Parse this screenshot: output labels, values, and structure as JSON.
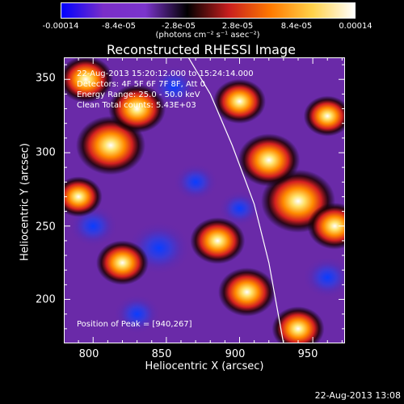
{
  "colorbar": {
    "ticks": [
      "-0.00014",
      "-8.4e-05",
      "-2.8e-05",
      "2.8e-05",
      "8.4e-05",
      "0.00014"
    ],
    "units": "(photons cm⁻² s⁻¹ asec⁻²)",
    "colors": [
      "#0000ff",
      "#7a2ec8",
      "#7b34cc",
      "#000000",
      "#c81e1e",
      "#ff7a00",
      "#ffd24a",
      "#ffffff"
    ]
  },
  "chart_data": {
    "type": "heatmap",
    "title": "Reconstructed RHESSI Image",
    "xlabel": "Heliocentric X (arcsec)",
    "ylabel": "Heliocentric Y (arcsec)",
    "xlim": [
      780,
      972
    ],
    "ylim": [
      170,
      365
    ],
    "xticks": [
      800,
      850,
      900,
      950
    ],
    "yticks": [
      200,
      250,
      300,
      350
    ],
    "annotations": [
      "22-Aug-2013 15:20:12.000 to 15:24:14.000",
      "Detectors: 4F 5F 6F 7F 8F, Att 0",
      "Energy Range: 25.0 - 50.0 keV",
      "Clean    Total counts: 5.43E+03",
      "Position of Peak = [940,267]"
    ],
    "peak": [
      940,
      267
    ],
    "bright_sources": [
      {
        "x": 940,
        "y": 267,
        "intensity": 1.0
      },
      {
        "x": 812,
        "y": 305,
        "intensity": 0.9
      },
      {
        "x": 920,
        "y": 295,
        "intensity": 0.75
      },
      {
        "x": 965,
        "y": 250,
        "intensity": 0.6
      },
      {
        "x": 830,
        "y": 330,
        "intensity": 0.65
      },
      {
        "x": 900,
        "y": 335,
        "intensity": 0.55
      },
      {
        "x": 795,
        "y": 350,
        "intensity": 0.6
      },
      {
        "x": 885,
        "y": 240,
        "intensity": 0.6
      },
      {
        "x": 905,
        "y": 205,
        "intensity": 0.65
      },
      {
        "x": 940,
        "y": 180,
        "intensity": 0.55
      },
      {
        "x": 820,
        "y": 225,
        "intensity": 0.55
      },
      {
        "x": 790,
        "y": 270,
        "intensity": 0.45
      },
      {
        "x": 960,
        "y": 325,
        "intensity": 0.45
      }
    ],
    "dark_sources": [
      {
        "x": 845,
        "y": 235,
        "intensity": -0.8
      },
      {
        "x": 800,
        "y": 250,
        "intensity": -0.5
      },
      {
        "x": 855,
        "y": 345,
        "intensity": -0.5
      },
      {
        "x": 960,
        "y": 215,
        "intensity": -0.5
      },
      {
        "x": 870,
        "y": 280,
        "intensity": -0.4
      },
      {
        "x": 830,
        "y": 190,
        "intensity": -0.45
      },
      {
        "x": 900,
        "y": 262,
        "intensity": -0.35
      }
    ],
    "limb_curve": {
      "x": [
        865,
        880,
        895,
        910,
        920,
        930
      ],
      "y": [
        365,
        340,
        305,
        265,
        225,
        170
      ]
    }
  },
  "footer": "22-Aug-2013 13:08"
}
